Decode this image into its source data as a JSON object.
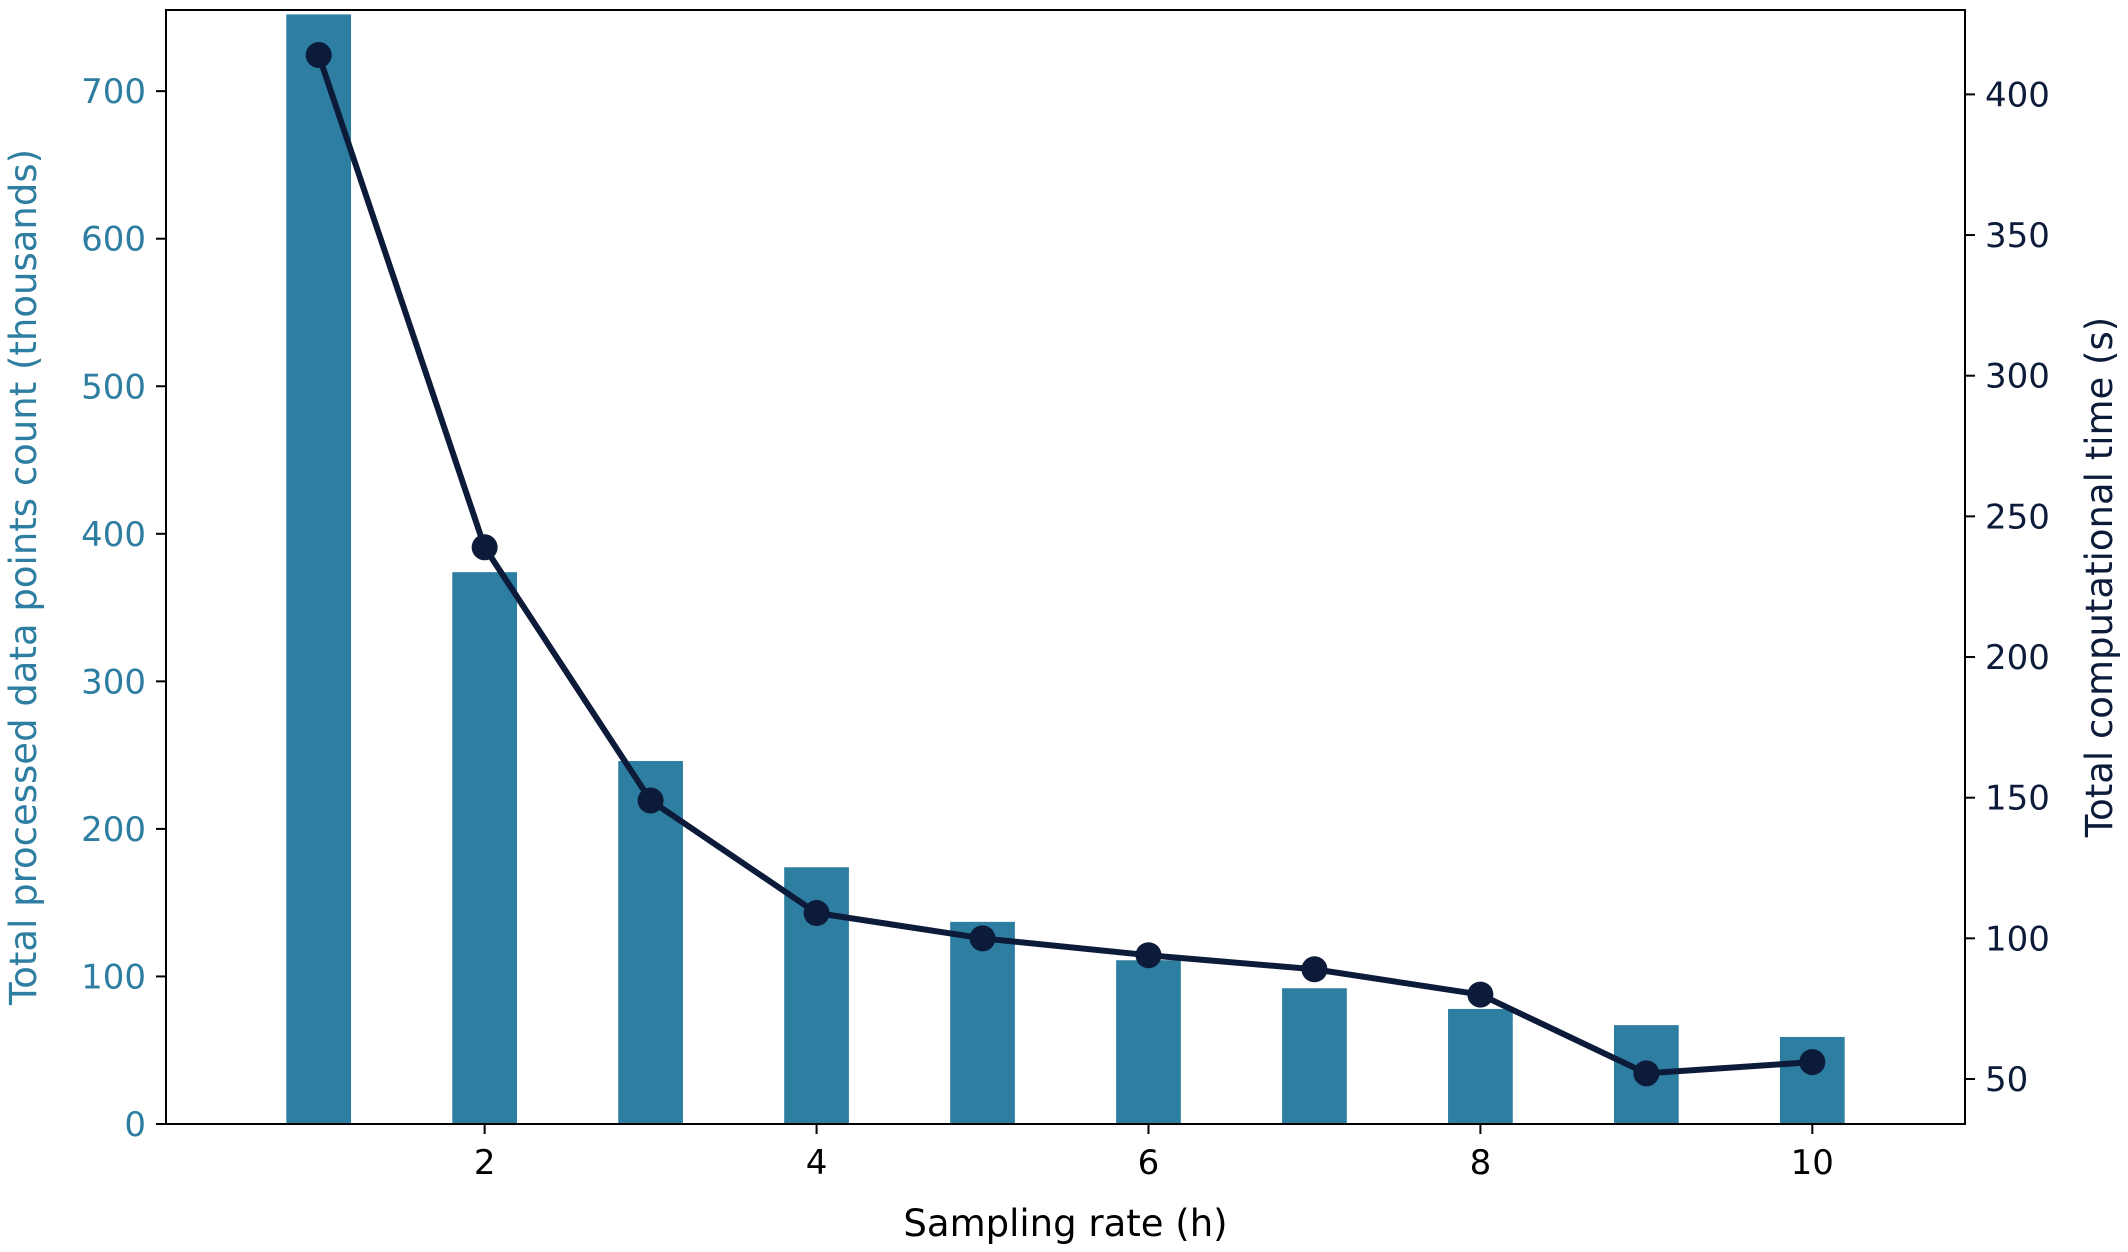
{
  "chart_data": {
    "type": "bar",
    "xlabel": "Sampling rate (h)",
    "ylabel": "Total processed data points count (thousands)",
    "y2label": "Total computational time (s)",
    "x": [
      1,
      2,
      3,
      4,
      5,
      6,
      7,
      8,
      9,
      10
    ],
    "x_ticks": [
      2,
      4,
      6,
      8,
      10
    ],
    "xlim": [
      0.08,
      10.92
    ],
    "ylim": [
      0,
      755
    ],
    "y_ticks": [
      0,
      100,
      200,
      300,
      400,
      500,
      600,
      700
    ],
    "y2lim": [
      34,
      430
    ],
    "y2_ticks": [
      50,
      100,
      150,
      200,
      250,
      300,
      350,
      400
    ],
    "grid": false,
    "series": [
      {
        "kind": "bar",
        "axis": "left",
        "color": "#2e7ea1",
        "values": [
          752,
          374,
          246,
          174,
          137,
          111,
          92,
          78,
          67,
          59
        ]
      },
      {
        "kind": "line",
        "axis": "right",
        "color": "#0d1b3a",
        "marker": "circle",
        "values": [
          414,
          239,
          149,
          109,
          100,
          94,
          89,
          80,
          52,
          56
        ]
      }
    ]
  }
}
